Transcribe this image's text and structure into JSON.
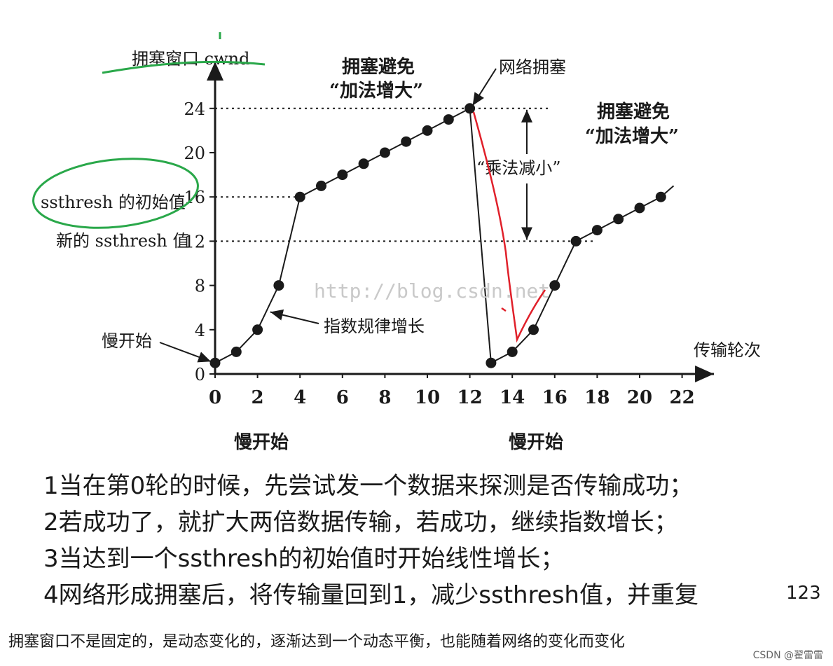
{
  "chart_data": {
    "type": "line",
    "ylabel": "拥塞窗口 cwnd",
    "xlabel": "传输轮次",
    "x_ticks": [
      0,
      2,
      4,
      6,
      8,
      10,
      12,
      14,
      16,
      18,
      20,
      22
    ],
    "y_ticks": [
      0,
      4,
      8,
      12,
      16,
      20,
      24
    ],
    "xlim": [
      0,
      23
    ],
    "ylim": [
      0,
      28
    ],
    "grid": false,
    "series": [
      {
        "points": [
          [
            0,
            1
          ],
          [
            1,
            2
          ],
          [
            2,
            4
          ],
          [
            3,
            8
          ],
          [
            4,
            16
          ],
          [
            5,
            17
          ],
          [
            6,
            18
          ],
          [
            7,
            19
          ],
          [
            8,
            20
          ],
          [
            9,
            21
          ],
          [
            10,
            22
          ],
          [
            11,
            23
          ],
          [
            12,
            24
          ],
          [
            13,
            1
          ],
          [
            14,
            2
          ],
          [
            15,
            4
          ],
          [
            16,
            8
          ],
          [
            17,
            12
          ],
          [
            18,
            13
          ],
          [
            19,
            14
          ],
          [
            20,
            15
          ],
          [
            21,
            16
          ]
        ],
        "extension": [
          21.6,
          17
        ]
      }
    ],
    "reference_lines": [
      {
        "y": 24,
        "x_end": 15.8
      },
      {
        "y": 16,
        "x_end": 4
      },
      {
        "y": 12,
        "x_end": 17.8
      }
    ],
    "y_annotations": {
      "initial_ssthresh": "ssthresh 的初始值",
      "new_ssthresh": "新的 ssthresh 值"
    },
    "annotations": {
      "slow_start_left": "慢开始",
      "exponential": "指数规律增长",
      "congestion": "网络拥塞",
      "avoid_1_line1": "拥塞避免",
      "avoid_1_line2": "“加法增大”",
      "avoid_2_line1": "拥塞避免",
      "avoid_2_line2": "“加法增大”",
      "multiplicative": "“乘法减小”",
      "slow_start_below_1": "慢开始",
      "slow_start_below_2": "慢开始"
    },
    "watermark": "http://blog.csdn.net"
  },
  "colors": {
    "ink": "#1a1a1a",
    "green_marker": "#2aa84a",
    "red_marker": "#e0202a",
    "watermark": "#c9c9c9"
  },
  "notes": [
    "1当在第0轮的时候，先尝试发一个数据来探测是否传输成功；",
    "2若成功了，就扩大两倍数据传输，若成功，继续指数增长；",
    "3当达到一个ssthresh的初始值时开始线性增长；",
    "4网络形成拥塞后，将传输量回到1，减少ssthresh值，并重复"
  ],
  "page_number": "123",
  "summary": "拥塞窗口不是固定的，是动态变化的，逐渐达到一个动态平衡，也能随着网络的变化而变化",
  "credit": "CSDN @翟雷雷"
}
